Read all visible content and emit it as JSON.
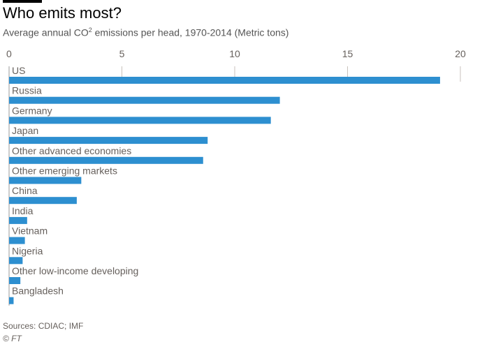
{
  "colors": {
    "bar": "#2d8fd0",
    "grid": "#c8c2bc",
    "axis": "#999999",
    "text": "#66605c",
    "title": "#000000"
  },
  "chart_data": {
    "type": "bar",
    "orientation": "horizontal",
    "title": "Who emits most?",
    "subtitle_pre": "Average annual CO",
    "subtitle_sup": "2",
    "subtitle_post": " emissions per head, 1970-2014 (Metric tons)",
    "xlim": [
      0,
      20
    ],
    "xticks": [
      0,
      5,
      10,
      15,
      20
    ],
    "categories": [
      "US",
      "Russia",
      "Germany",
      "Japan",
      "Other advanced economies",
      "Other emerging markets",
      "China",
      "India",
      "Vietnam",
      "Nigeria",
      "Other low-income developing",
      "Bangladesh"
    ],
    "values": [
      19.1,
      12.0,
      11.6,
      8.8,
      8.6,
      3.2,
      3.0,
      0.8,
      0.7,
      0.6,
      0.5,
      0.2
    ],
    "grid": true
  },
  "footer": {
    "source": "Sources: CDIAC; IMF",
    "credit": "© FT"
  }
}
